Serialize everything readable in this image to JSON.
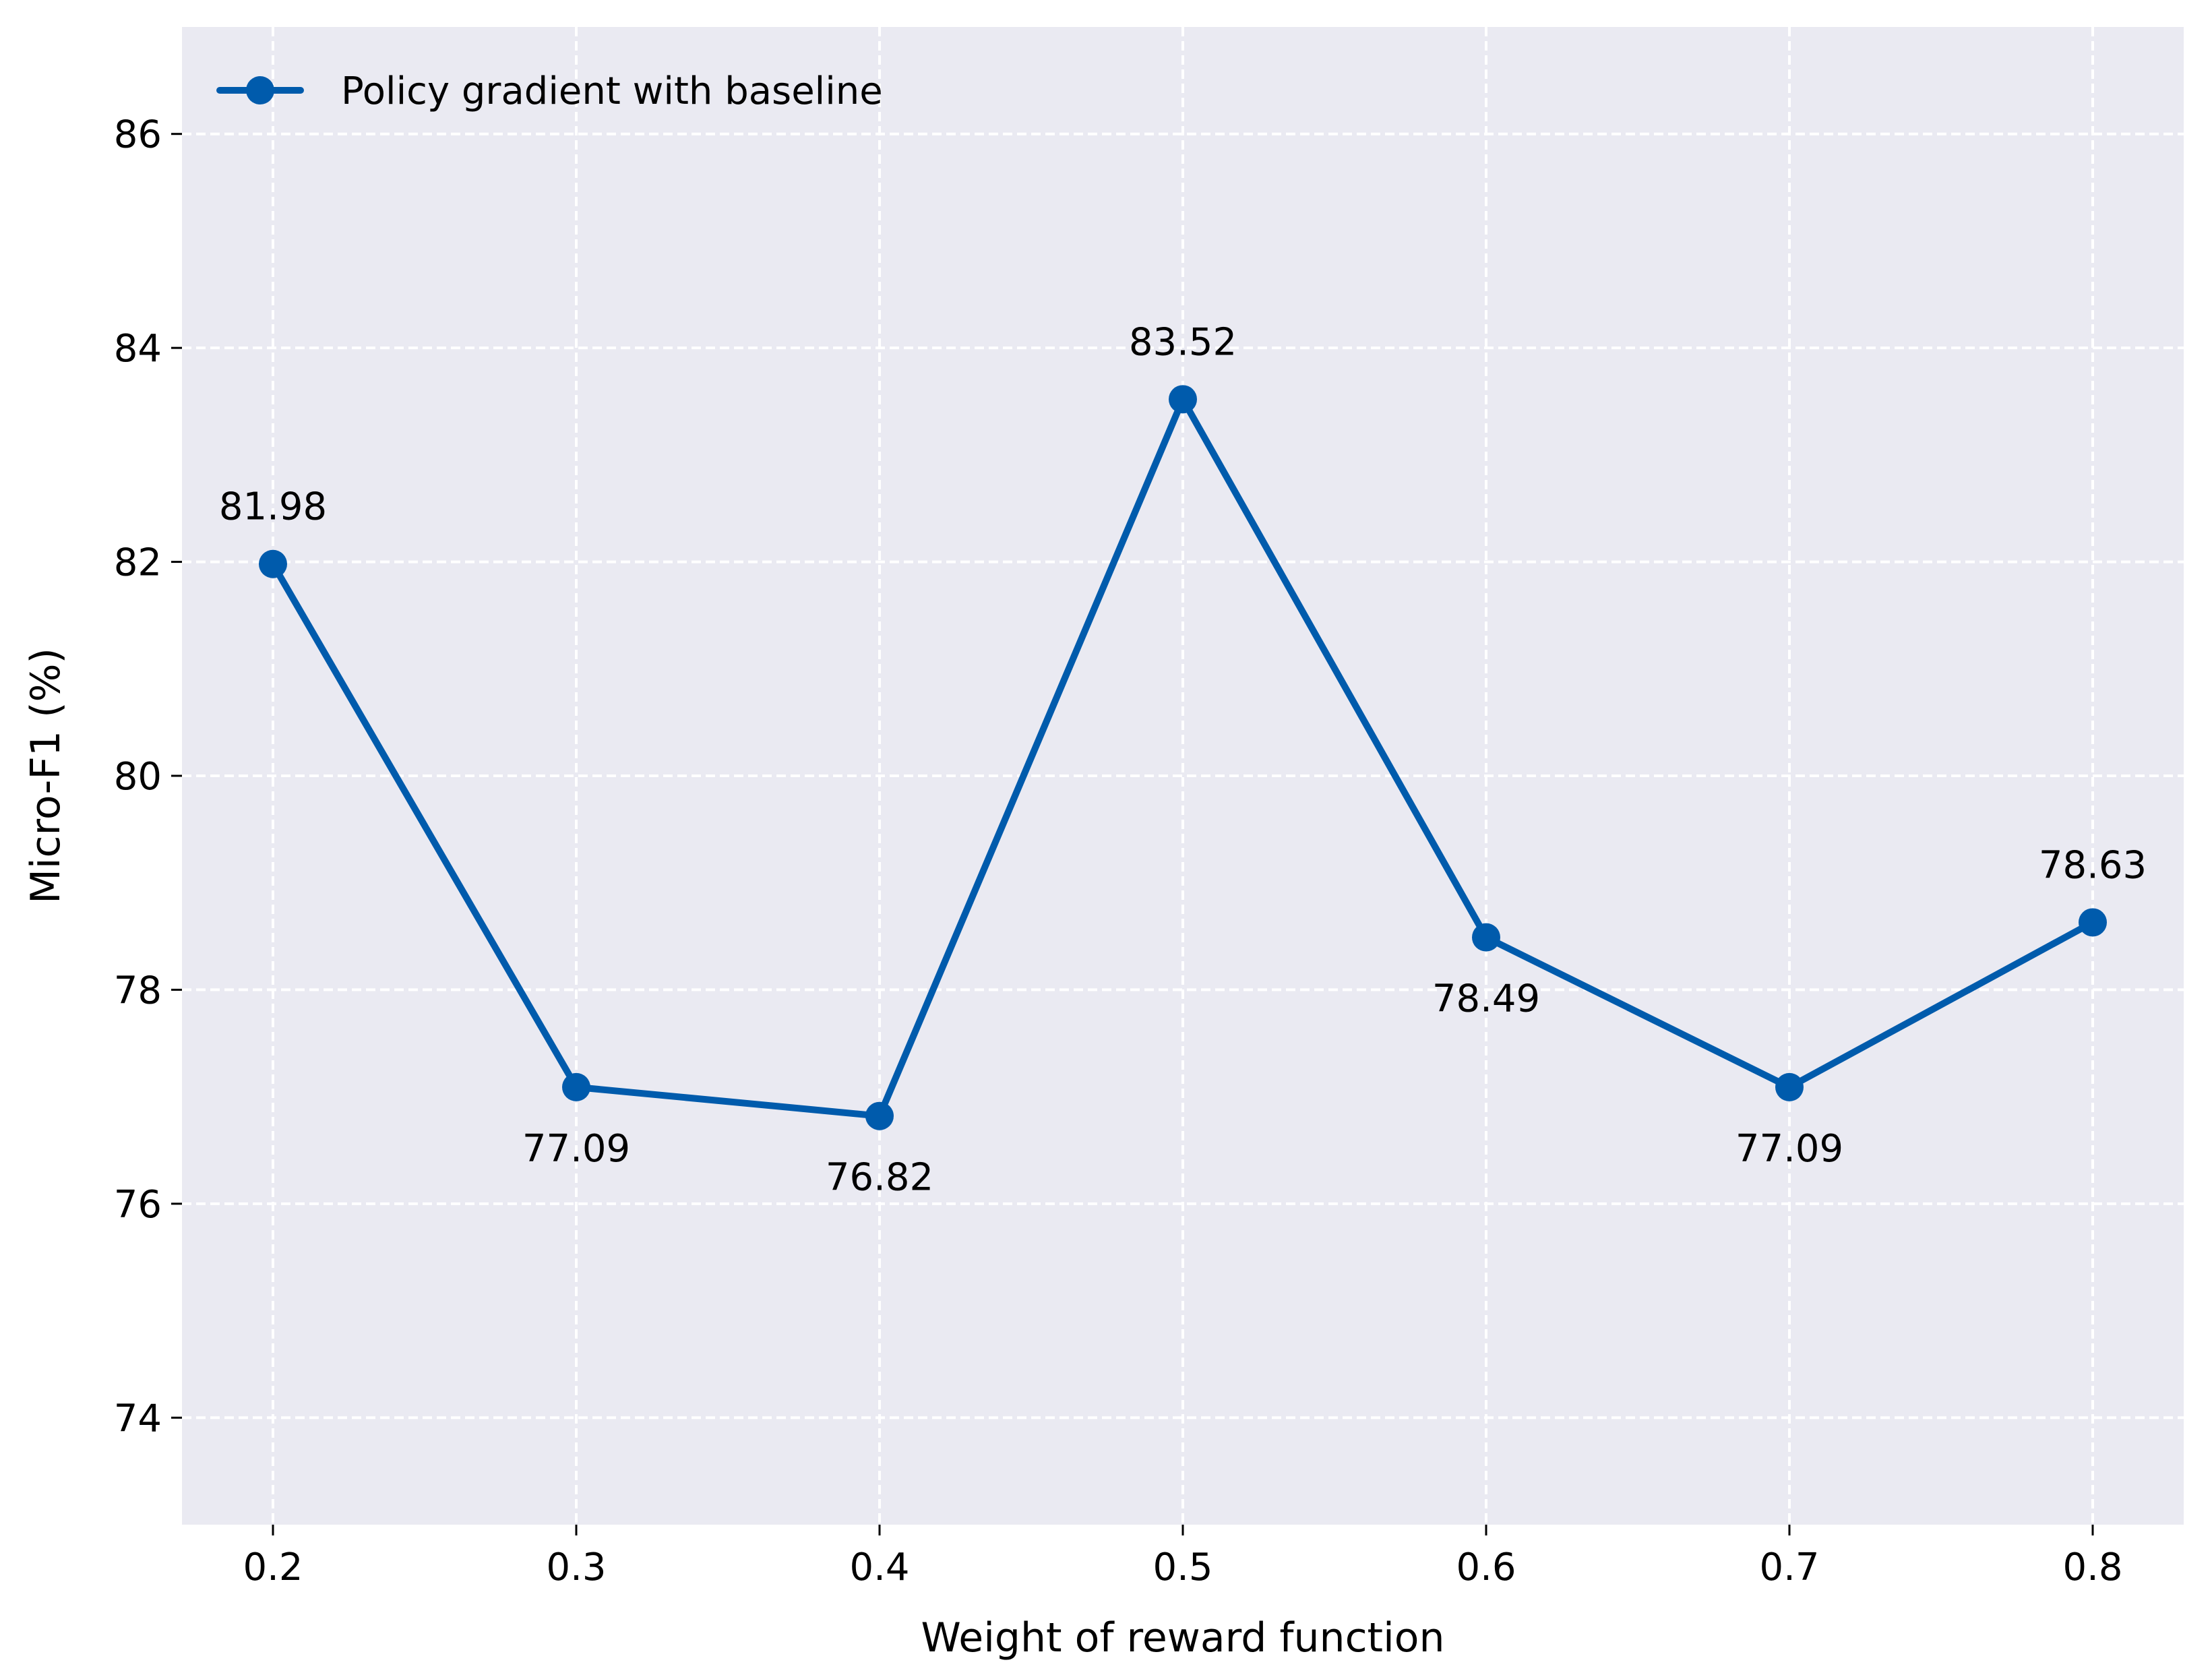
{
  "chart_data": {
    "type": "line",
    "xlabel": "Weight of reward function",
    "ylabel": "Micro-F1 (%)",
    "x": [
      0.2,
      0.3,
      0.4,
      0.5,
      0.6,
      0.7,
      0.8
    ],
    "x_tick_labels": [
      "0.2",
      "0.3",
      "0.4",
      "0.5",
      "0.6",
      "0.7",
      "0.8"
    ],
    "y_ticks": [
      74,
      76,
      78,
      80,
      82,
      84,
      86
    ],
    "y_tick_labels": [
      "74",
      "76",
      "78",
      "80",
      "82",
      "84",
      "86"
    ],
    "xlim": [
      0.17,
      0.83
    ],
    "ylim": [
      73,
      87
    ],
    "grid": true,
    "grid_style": "dashed",
    "legend_position": "top-left",
    "series": [
      {
        "name": "Policy gradient with baseline",
        "color": "#005bac",
        "marker": "circle",
        "values": [
          81.98,
          77.09,
          76.82,
          83.52,
          78.49,
          77.09,
          78.63
        ],
        "data_labels": [
          "81.98",
          "77.09",
          "76.82",
          "83.52",
          "78.49",
          "77.09",
          "78.63"
        ],
        "label_positions": [
          "above",
          "below",
          "below",
          "above",
          "below",
          "below",
          "above"
        ]
      }
    ],
    "background_color": "#eaeaf2"
  }
}
